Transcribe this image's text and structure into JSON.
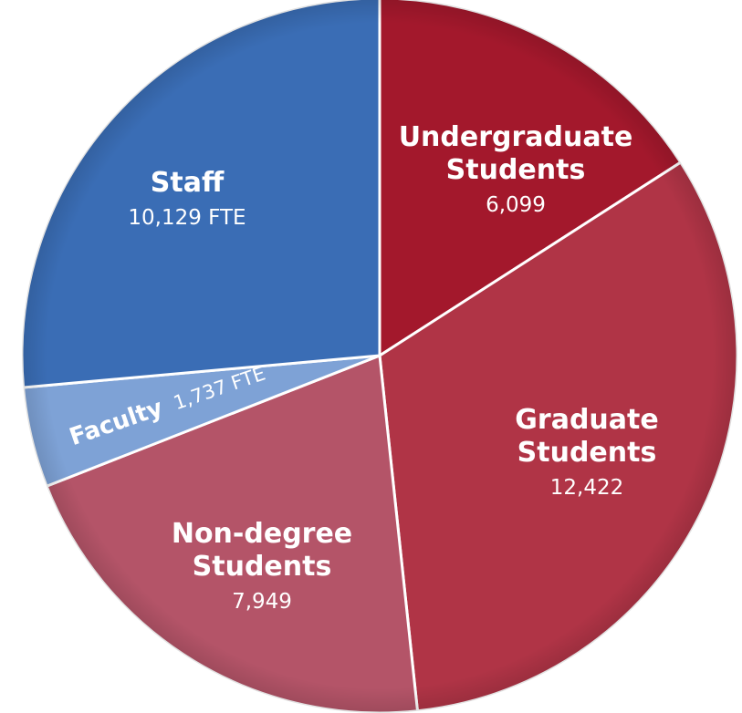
{
  "chart_data": {
    "type": "pie",
    "title": "",
    "slices": [
      {
        "name": "Undergraduate Students",
        "title_lines": [
          "Undergraduate",
          "Students"
        ],
        "value": 6099,
        "value_label": "6,099",
        "color": "#a3182c"
      },
      {
        "name": "Graduate Students",
        "title_lines": [
          "Graduate",
          "Students"
        ],
        "value": 12422,
        "value_label": "12,422",
        "color": "#b03446"
      },
      {
        "name": "Non-degree Students",
        "title_lines": [
          "Non-degree",
          "Students"
        ],
        "value": 7949,
        "value_label": "7,949",
        "color": "#b45468"
      },
      {
        "name": "Faculty",
        "title_lines": [
          "Faculty"
        ],
        "value": 1737,
        "value_label": "1,737 FTE",
        "color": "#7ea2d6"
      },
      {
        "name": "Staff",
        "title_lines": [
          "Staff"
        ],
        "value": 10129,
        "value_label": "10,129 FTE",
        "color": "#3a6db5"
      }
    ]
  }
}
